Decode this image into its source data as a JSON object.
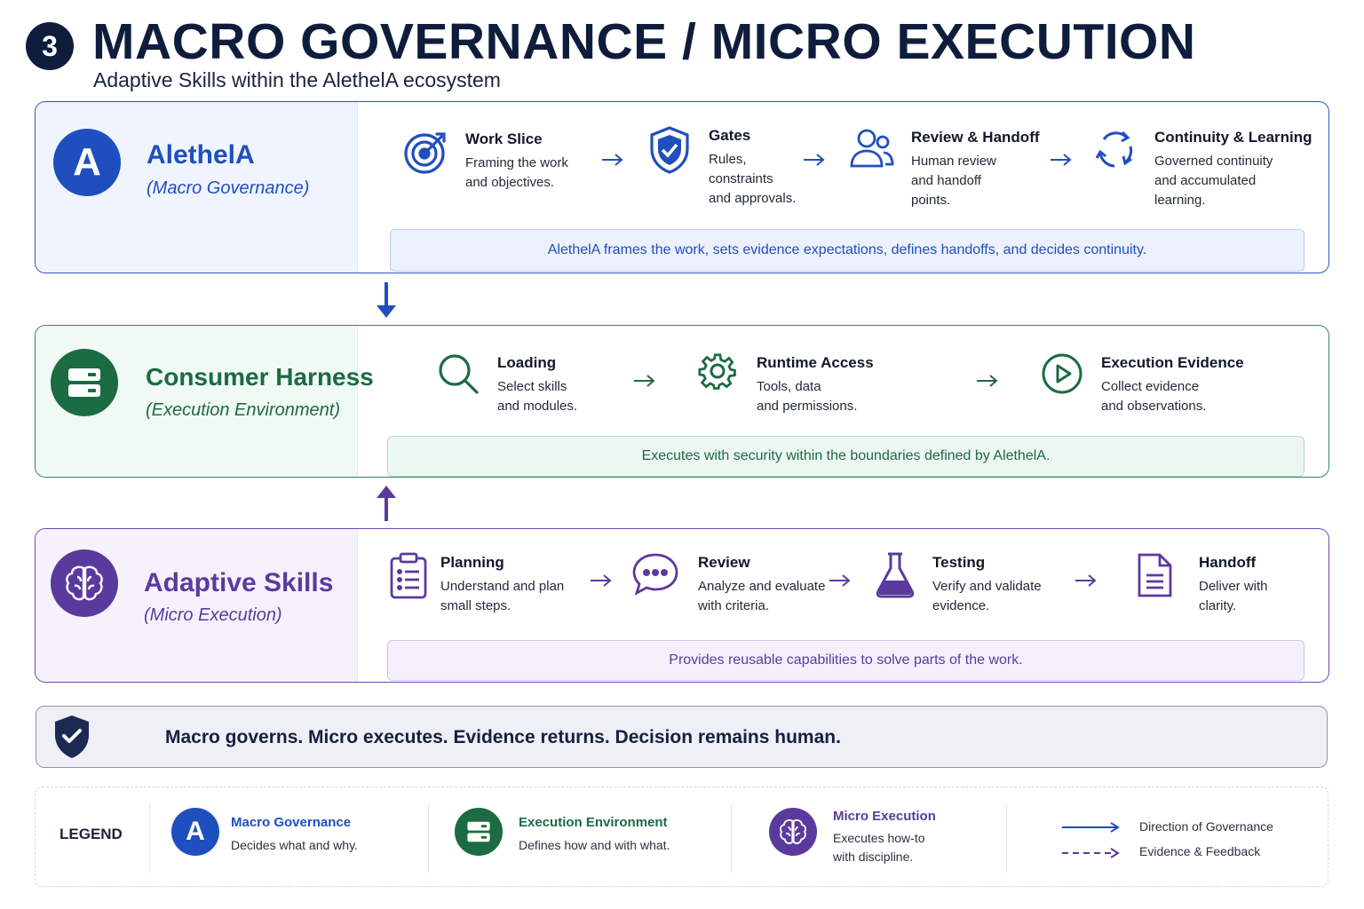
{
  "header": {
    "section_number": "3",
    "title": "MACRO GOVERNANCE / MICRO EXECUTION",
    "subtitle": "Adaptive Skills within the AlethelA ecosystem"
  },
  "colors": {
    "navy": "#0f1d3c",
    "macro_blue": "#1f4fbf",
    "exec_green": "#1b6b43",
    "micro_purple": "#5b3a9e"
  },
  "layers": {
    "macro": {
      "icon_letter": "A",
      "name": "AlethelA",
      "subtitle": "(Macro Governance)",
      "steps": [
        {
          "title": "Work Slice",
          "desc": [
            "Framing the work",
            "and objectives."
          ],
          "icon": "target-icon"
        },
        {
          "title": "Gates",
          "desc": [
            "Rules,",
            "constraints",
            "and approvals."
          ],
          "icon": "shield-check-icon"
        },
        {
          "title": "Review & Handoff",
          "desc": [
            "Human review",
            "and handoff",
            "points."
          ],
          "icon": "people-icon"
        },
        {
          "title": "Continuity & Learning",
          "desc": [
            "Governed continuity",
            "and accumulated",
            "learning."
          ],
          "icon": "refresh-cycle-icon"
        }
      ],
      "summary": "AlethelA frames the work, sets evidence expectations, defines handoffs, and decides continuity."
    },
    "exec": {
      "name": "Consumer Harness",
      "subtitle": "(Execution Environment)",
      "steps": [
        {
          "title": "Loading",
          "desc": [
            "Select skills",
            "and modules."
          ],
          "icon": "search-icon"
        },
        {
          "title": "Runtime Access",
          "desc": [
            "Tools, data",
            "and permissions."
          ],
          "icon": "gear-icon"
        },
        {
          "title": "Execution Evidence",
          "desc": [
            "Collect evidence",
            "and observations."
          ],
          "icon": "play-circle-icon"
        }
      ],
      "summary": "Executes with security within the boundaries defined by AlethelA."
    },
    "micro": {
      "name": "Adaptive Skills",
      "subtitle": "(Micro Execution)",
      "steps": [
        {
          "title": "Planning",
          "desc": [
            "Understand and plan",
            "small steps."
          ],
          "icon": "clipboard-list-icon"
        },
        {
          "title": "Review",
          "desc": [
            "Analyze and evaluate",
            "with criteria."
          ],
          "icon": "chat-bubble-icon"
        },
        {
          "title": "Testing",
          "desc": [
            "Verify and validate",
            "evidence."
          ],
          "icon": "flask-icon"
        },
        {
          "title": "Handoff",
          "desc": [
            "Deliver with",
            "clarity."
          ],
          "icon": "document-icon"
        }
      ],
      "summary": "Provides reusable capabilities to solve parts of the work."
    }
  },
  "principle": "Macro governs. Micro executes. Evidence returns. Decision remains human.",
  "legend": {
    "title": "LEGEND",
    "items": [
      {
        "head": "Macro Governance",
        "desc": [
          "Decides what and why."
        ]
      },
      {
        "head": "Execution Environment",
        "desc": [
          "Defines how and with what."
        ]
      },
      {
        "head": "Micro Execution",
        "desc": [
          "Executes how-to",
          "with discipline."
        ]
      }
    ],
    "lines": [
      {
        "label": "Direction of Governance",
        "style": "solid"
      },
      {
        "label": "Evidence & Feedback",
        "style": "dashed"
      }
    ]
  }
}
